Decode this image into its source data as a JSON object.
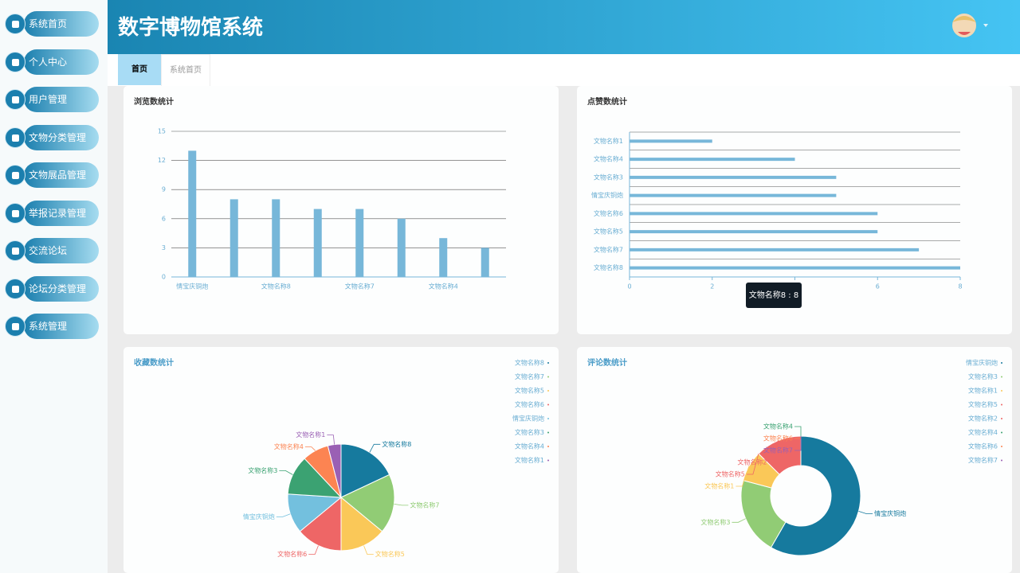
{
  "sidebar": {
    "items": [
      "系统首页",
      "个人中心",
      "用户管理",
      "文物分类管理",
      "文物展品管理",
      "举报记录管理",
      "交流论坛",
      "论坛分类管理",
      "系统管理"
    ]
  },
  "header": {
    "title": "数字博物馆系统"
  },
  "tabs": [
    "首页",
    "系统首页"
  ],
  "chart_data": [
    {
      "type": "bar",
      "title": "浏览数统计",
      "categories": [
        "情宝庆铜炮",
        null,
        "文物名称8",
        null,
        "文物名称7",
        null,
        "文物名称4",
        null
      ],
      "values": [
        13,
        8,
        8,
        7,
        7,
        6,
        4,
        3
      ],
      "color": "#77b7d9",
      "ylim": [
        0,
        15
      ],
      "yticks": [
        0,
        3,
        6,
        9,
        12,
        15
      ],
      "grid": true
    },
    {
      "type": "barh",
      "title": "点赞数统计",
      "categories": [
        "文物名称1",
        "文物名称4",
        "文物名称3",
        "情宝庆铜炮",
        "文物名称6",
        "文物名称5",
        "文物名称7",
        "文物名称8"
      ],
      "values": [
        2,
        4,
        5,
        5,
        6,
        6,
        7,
        8
      ],
      "color": "#77b7d9",
      "xlim": [
        0,
        8
      ],
      "xticks": [
        0,
        2,
        4,
        6,
        8
      ],
      "grid": true,
      "tooltip": "文物名称8 : 8"
    },
    {
      "type": "pie",
      "title": "收藏数统计",
      "categories": [
        "文物名称8",
        "文物名称7",
        "文物名称5",
        "文物名称6",
        "情宝庆铜炮",
        "文物名称3",
        "文物名称4",
        "文物名称1"
      ],
      "values": [
        9,
        9,
        7,
        7,
        6,
        6,
        4,
        2
      ],
      "colors": [
        "#167a9e",
        "#91cc75",
        "#fac858",
        "#ee6666",
        "#73c0de",
        "#3ba272",
        "#fc8452",
        "#9a60b4"
      ]
    },
    {
      "type": "donut",
      "title": "评论数统计",
      "categories": [
        "情宝庆铜炮",
        "文物名称3",
        "文物名称1",
        "文物名称5",
        "文物名称2",
        "文物名称4",
        "文物名称6",
        "文物名称7"
      ],
      "values": [
        14,
        5,
        2,
        0,
        3,
        0,
        0,
        0
      ],
      "colors": [
        "#167a9e",
        "#91cc75",
        "#fac858",
        "#ee6666",
        "#ee6666",
        "#3ba272",
        "#fc8452",
        "#9a60b4"
      ]
    }
  ]
}
